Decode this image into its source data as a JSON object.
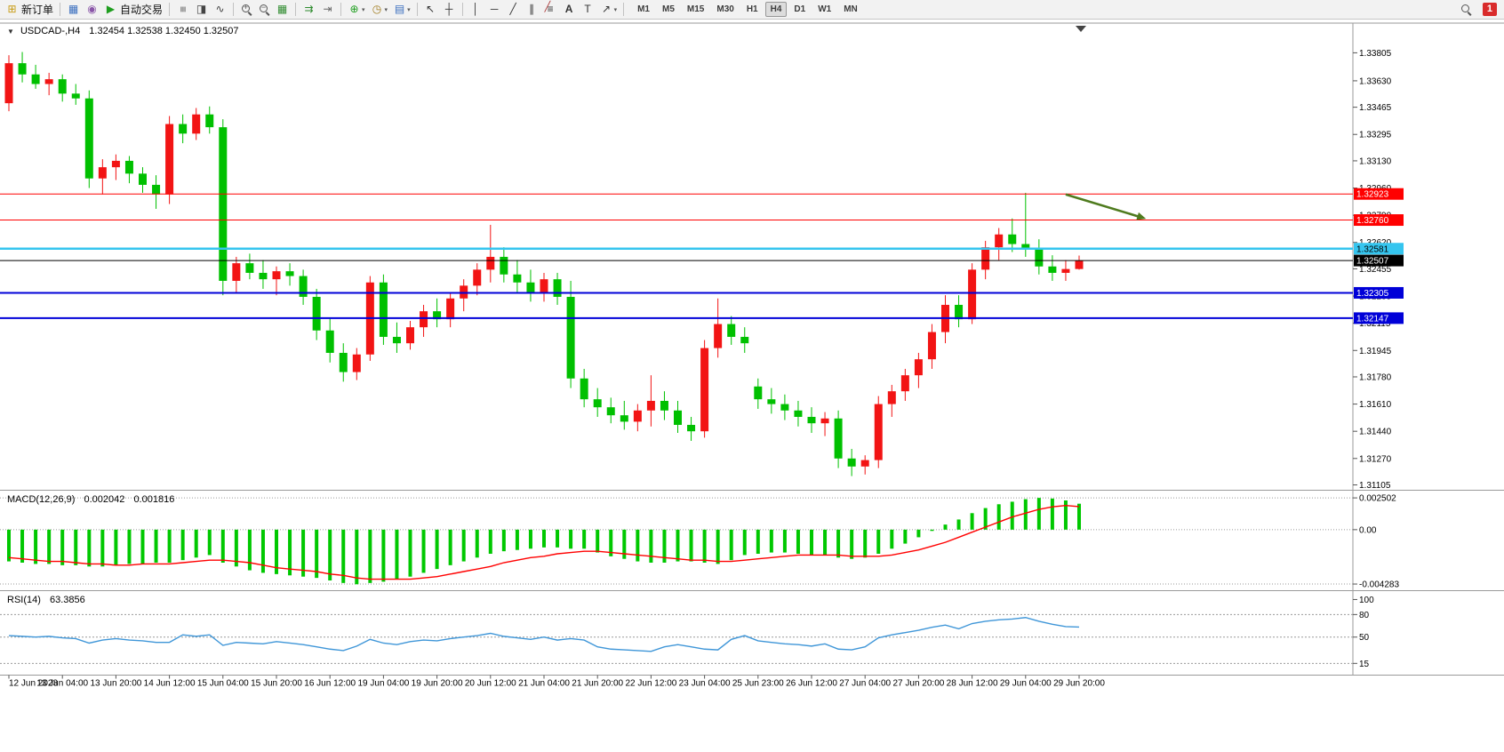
{
  "toolbar": {
    "new_order_label": "新订单",
    "auto_trading_label": "自动交易",
    "timeframes": [
      "M1",
      "M5",
      "M15",
      "M30",
      "H1",
      "H4",
      "D1",
      "W1",
      "MN"
    ],
    "active_timeframe": "H4",
    "notification_count": "1"
  },
  "icons": {
    "menu": "▼",
    "new_order": "⊞",
    "chart_window": "▦",
    "profiles": "◉",
    "auto_trading": "▶",
    "bars_mode": "≡",
    "candles_mode": "◨",
    "line_mode": "∿",
    "tile_windows": "▦",
    "auto_scroll": "⇉",
    "chart_shift": "⇥",
    "indicators_plus": "⊕",
    "periods_clock": "◷",
    "templates": "▤",
    "dropdown_caret": "▾",
    "cursor": "↖",
    "crosshair": "┼",
    "vertical_line": "│",
    "horizontal_line": "─",
    "trendline": "╱",
    "channel": "∥",
    "fibonacci_lines": "≡",
    "fibonacci_slash": "╱",
    "text_tool": "A",
    "label_tool": "T",
    "shapes_arrow": "↗",
    "zoom_in_sign": "+",
    "zoom_out_sign": "−"
  },
  "chart": {
    "symbol_period": "USDCAD-,H4",
    "ohlc": "1.32454 1.32538 1.32450 1.32507"
  },
  "indicators": {
    "macd": {
      "label": "MACD(12,26,9)",
      "value": "0.002042",
      "signal": "0.001816"
    },
    "rsi": {
      "label": "RSI(14)",
      "value": "63.3856"
    }
  },
  "chart_data": [
    {
      "type": "candlestick",
      "symbol": "USDCAD",
      "timeframe": "H4",
      "up_color": "#f21414",
      "down_color": "#00c000",
      "ylim": [
        1.3108,
        1.33985
      ],
      "y_ticks": [
        "1.33805",
        "1.33630",
        "1.33465",
        "1.33295",
        "1.33130",
        "1.32960",
        "1.32790",
        "1.32620",
        "1.32455",
        "1.32285",
        "1.32115",
        "1.31945",
        "1.31780",
        "1.31610",
        "1.31440",
        "1.31270",
        "1.31105"
      ],
      "x_labels": [
        "12 Jun 2023",
        "13 Jun 04:00",
        "13 Jun 20:00",
        "14 Jun 12:00",
        "15 Jun 04:00",
        "15 Jun 20:00",
        "16 Jun 12:00",
        "19 Jun 04:00",
        "19 Jun 20:00",
        "20 Jun 12:00",
        "21 Jun 04:00",
        "21 Jun 20:00",
        "22 Jun 12:00",
        "23 Jun 04:00",
        "25 Jun 23:00",
        "26 Jun 12:00",
        "27 Jun 04:00",
        "27 Jun 20:00",
        "28 Jun 12:00",
        "29 Jun 04:00",
        "29 Jun 20:00"
      ],
      "label_every": 4,
      "candles": [
        [
          1.3349,
          1.3379,
          1.3344,
          1.3374
        ],
        [
          1.3374,
          1.3381,
          1.3362,
          1.3367
        ],
        [
          1.3367,
          1.3373,
          1.3358,
          1.3361
        ],
        [
          1.3361,
          1.3368,
          1.3354,
          1.3364
        ],
        [
          1.3364,
          1.3367,
          1.335,
          1.3355
        ],
        [
          1.3355,
          1.3361,
          1.3348,
          1.3352
        ],
        [
          1.3352,
          1.3357,
          1.3296,
          1.3302
        ],
        [
          1.3302,
          1.3314,
          1.3292,
          1.3309
        ],
        [
          1.3309,
          1.3317,
          1.3301,
          1.3313
        ],
        [
          1.3313,
          1.3316,
          1.3299,
          1.3305
        ],
        [
          1.3305,
          1.3309,
          1.3293,
          1.3298
        ],
        [
          1.3298,
          1.3304,
          1.3283,
          1.3292
        ],
        [
          1.3292,
          1.3341,
          1.3286,
          1.3336
        ],
        [
          1.3336,
          1.3342,
          1.3324,
          1.333
        ],
        [
          1.333,
          1.3346,
          1.3326,
          1.3342
        ],
        [
          1.3342,
          1.3347,
          1.333,
          1.3334
        ],
        [
          1.3334,
          1.3339,
          1.3229,
          1.3238
        ],
        [
          1.3238,
          1.3253,
          1.3231,
          1.3249
        ],
        [
          1.3249,
          1.3255,
          1.3239,
          1.3243
        ],
        [
          1.3243,
          1.3251,
          1.3233,
          1.3239
        ],
        [
          1.3239,
          1.3247,
          1.3229,
          1.3244
        ],
        [
          1.3244,
          1.3249,
          1.3235,
          1.3241
        ],
        [
          1.3241,
          1.3245,
          1.3223,
          1.3228
        ],
        [
          1.3228,
          1.3233,
          1.3201,
          1.3207
        ],
        [
          1.3207,
          1.3215,
          1.3187,
          1.3193
        ],
        [
          1.3193,
          1.3199,
          1.3175,
          1.3181
        ],
        [
          1.3181,
          1.3196,
          1.3176,
          1.3192
        ],
        [
          1.3192,
          1.3241,
          1.3188,
          1.3237
        ],
        [
          1.3237,
          1.3242,
          1.3198,
          1.3203
        ],
        [
          1.3203,
          1.3212,
          1.3193,
          1.3199
        ],
        [
          1.3199,
          1.3213,
          1.3195,
          1.3209
        ],
        [
          1.3209,
          1.3223,
          1.3203,
          1.3219
        ],
        [
          1.3219,
          1.3227,
          1.3209,
          1.3214
        ],
        [
          1.3214,
          1.3231,
          1.3209,
          1.3227
        ],
        [
          1.3227,
          1.3239,
          1.3219,
          1.3235
        ],
        [
          1.3235,
          1.3249,
          1.3229,
          1.3245
        ],
        [
          1.3245,
          1.3273,
          1.3237,
          1.3253
        ],
        [
          1.3253,
          1.3259,
          1.3237,
          1.3242
        ],
        [
          1.3242,
          1.3251,
          1.3231,
          1.3237
        ],
        [
          1.3237,
          1.3245,
          1.3225,
          1.3231
        ],
        [
          1.3231,
          1.3243,
          1.3225,
          1.3239
        ],
        [
          1.3239,
          1.3243,
          1.3223,
          1.3228
        ],
        [
          1.3228,
          1.3238,
          1.3171,
          1.3177
        ],
        [
          1.3177,
          1.3183,
          1.3159,
          1.3164
        ],
        [
          1.3164,
          1.3171,
          1.3153,
          1.3159
        ],
        [
          1.3159,
          1.3165,
          1.3149,
          1.3154
        ],
        [
          1.3154,
          1.3163,
          1.3145,
          1.315
        ],
        [
          1.315,
          1.3161,
          1.3144,
          1.3157
        ],
        [
          1.3157,
          1.3179,
          1.3147,
          1.3163
        ],
        [
          1.3163,
          1.3169,
          1.3151,
          1.3157
        ],
        [
          1.3157,
          1.3163,
          1.3143,
          1.3148
        ],
        [
          1.3148,
          1.3153,
          1.3138,
          1.3144
        ],
        [
          1.3144,
          1.3201,
          1.314,
          1.3196
        ],
        [
          1.3196,
          1.3227,
          1.319,
          1.3211
        ],
        [
          1.3211,
          1.3216,
          1.3198,
          1.3203
        ],
        [
          1.3203,
          1.3209,
          1.3193,
          1.3199
        ],
        [
          1.3172,
          1.3177,
          1.3158,
          1.3164
        ],
        [
          1.3164,
          1.3171,
          1.3155,
          1.3161
        ],
        [
          1.3161,
          1.3167,
          1.3151,
          1.3157
        ],
        [
          1.3157,
          1.3163,
          1.3147,
          1.3153
        ],
        [
          1.3153,
          1.3159,
          1.3143,
          1.3149
        ],
        [
          1.3149,
          1.3156,
          1.3141,
          1.3152
        ],
        [
          1.3152,
          1.3157,
          1.3121,
          1.3127
        ],
        [
          1.3127,
          1.3133,
          1.3116,
          1.3122
        ],
        [
          1.3122,
          1.3129,
          1.3117,
          1.3126
        ],
        [
          1.3126,
          1.3166,
          1.3121,
          1.3161
        ],
        [
          1.3161,
          1.3173,
          1.3153,
          1.3169
        ],
        [
          1.3169,
          1.3183,
          1.3163,
          1.3179
        ],
        [
          1.3179,
          1.3193,
          1.3171,
          1.3189
        ],
        [
          1.3189,
          1.3211,
          1.3183,
          1.3206
        ],
        [
          1.3206,
          1.3229,
          1.3199,
          1.3223
        ],
        [
          1.3223,
          1.3229,
          1.3209,
          1.3214
        ],
        [
          1.3214,
          1.3249,
          1.3211,
          1.3245
        ],
        [
          1.3245,
          1.3263,
          1.3239,
          1.3259
        ],
        [
          1.3259,
          1.3271,
          1.3251,
          1.3267
        ],
        [
          1.3267,
          1.3277,
          1.3256,
          1.3261
        ],
        [
          1.3261,
          1.3293,
          1.3253,
          1.3258
        ],
        [
          1.3258,
          1.3264,
          1.3242,
          1.3247
        ],
        [
          1.3247,
          1.3254,
          1.3238,
          1.3243
        ],
        [
          1.3243,
          1.3251,
          1.3238,
          1.32454
        ],
        [
          1.32454,
          1.32538,
          1.3245,
          1.32507
        ]
      ],
      "hlines": [
        {
          "price": 1.32923,
          "label": "1.32923",
          "color": "#ff0000",
          "label_bg": "#ff0000",
          "label_color": "#ffffff",
          "width": 1
        },
        {
          "price": 1.3276,
          "label": "1.32760",
          "color": "#ff0000",
          "label_bg": "#ff0000",
          "label_color": "#ffffff",
          "width": 1
        },
        {
          "price": 1.32581,
          "label": "1.32581",
          "color": "#35c5ef",
          "label_bg": "#35c5ef",
          "label_color": "#000000",
          "width": 2.5
        },
        {
          "price": 1.32507,
          "label": "1.32507",
          "color": "#000000",
          "label_bg": "#000000",
          "label_color": "#ffffff",
          "width": 1
        },
        {
          "price": 1.32305,
          "label": "1.32305",
          "color": "#0000d8",
          "label_bg": "#0000d8",
          "label_color": "#ffffff",
          "width": 2
        },
        {
          "price": 1.32147,
          "label": "1.32147",
          "color": "#0000d8",
          "label_bg": "#0000d8",
          "label_color": "#ffffff",
          "width": 2
        }
      ],
      "arrow": {
        "from_candle": 79,
        "from_price": 1.3292,
        "to_candle": 85,
        "to_price": 1.32768,
        "color": "#4f7b1e"
      }
    },
    {
      "type": "bar",
      "name": "MACD(12,26,9)",
      "bar_color": "#00c800",
      "signal_color": "#ff0000",
      "ylim": [
        -0.0047,
        0.003
      ],
      "ticks": [
        {
          "v": 0.002502,
          "label": "0.002502"
        },
        {
          "v": 0,
          "label": "0.00"
        },
        {
          "v": -0.004283,
          "label": "-0.004283"
        }
      ],
      "values": [
        -0.0025,
        -0.0026,
        -0.0027,
        -0.0027,
        -0.0028,
        -0.0028,
        -0.0029,
        -0.0029,
        -0.0028,
        -0.0027,
        -0.0027,
        -0.0026,
        -0.0026,
        -0.0024,
        -0.0022,
        -0.002,
        -0.0026,
        -0.0029,
        -0.0032,
        -0.0034,
        -0.0035,
        -0.0036,
        -0.0037,
        -0.0038,
        -0.004,
        -0.0042,
        -0.0043,
        -0.0042,
        -0.0041,
        -0.0039,
        -0.0037,
        -0.0034,
        -0.0031,
        -0.0028,
        -0.0025,
        -0.0022,
        -0.0019,
        -0.0017,
        -0.0016,
        -0.0015,
        -0.0014,
        -0.0014,
        -0.0015,
        -0.0015,
        -0.0018,
        -0.0021,
        -0.0023,
        -0.0025,
        -0.0026,
        -0.0026,
        -0.0025,
        -0.0025,
        -0.0026,
        -0.0027,
        -0.0024,
        -0.002,
        -0.0019,
        -0.0018,
        -0.0018,
        -0.0019,
        -0.002,
        -0.002,
        -0.0022,
        -0.0023,
        -0.0022,
        -0.0019,
        -0.0015,
        -0.0011,
        -0.0006,
        -0.0001,
        0.0004,
        0.0008,
        0.0013,
        0.0017,
        0.002,
        0.0022,
        0.0024,
        0.0025,
        0.00245,
        0.0023,
        0.002042
      ],
      "signal": [
        -0.0022,
        -0.0023,
        -0.0024,
        -0.0025,
        -0.0025,
        -0.0026,
        -0.0027,
        -0.0027,
        -0.0028,
        -0.0028,
        -0.0027,
        -0.0027,
        -0.0027,
        -0.0026,
        -0.0025,
        -0.0024,
        -0.0024,
        -0.0025,
        -0.0026,
        -0.0028,
        -0.003,
        -0.0031,
        -0.0032,
        -0.0033,
        -0.0035,
        -0.0036,
        -0.0038,
        -0.0039,
        -0.0039,
        -0.0039,
        -0.0039,
        -0.0038,
        -0.0037,
        -0.0035,
        -0.0033,
        -0.0031,
        -0.0029,
        -0.0026,
        -0.0024,
        -0.0022,
        -0.0021,
        -0.0019,
        -0.0018,
        -0.0017,
        -0.0017,
        -0.0018,
        -0.0019,
        -0.002,
        -0.0021,
        -0.0022,
        -0.0023,
        -0.0024,
        -0.0024,
        -0.0025,
        -0.0025,
        -0.0024,
        -0.0023,
        -0.0022,
        -0.0021,
        -0.002,
        -0.002,
        -0.002,
        -0.002,
        -0.0021,
        -0.0021,
        -0.0021,
        -0.002,
        -0.0018,
        -0.0016,
        -0.0013,
        -0.001,
        -0.0006,
        -0.0002,
        0.0002,
        0.0006,
        0.001,
        0.0013,
        0.0016,
        0.0018,
        0.0019,
        0.001816
      ]
    },
    {
      "type": "line",
      "name": "RSI(14)",
      "line_color": "#3f96d8",
      "ylim": [
        0,
        110
      ],
      "levels": [
        80,
        50,
        15
      ],
      "ticks": [
        {
          "v": 100,
          "label": "100"
        },
        {
          "v": 80,
          "label": "80"
        },
        {
          "v": 50,
          "label": "50"
        },
        {
          "v": 15,
          "label": "15"
        }
      ],
      "values": [
        52,
        51,
        50,
        51,
        49,
        48,
        42,
        46,
        48,
        46,
        45,
        43,
        43,
        53,
        51,
        53,
        39,
        43,
        42,
        41,
        44,
        42,
        40,
        37,
        34,
        32,
        38,
        47,
        42,
        40,
        44,
        46,
        45,
        48,
        50,
        52,
        55,
        51,
        49,
        47,
        50,
        46,
        48,
        46,
        37,
        34,
        33,
        32,
        31,
        37,
        40,
        37,
        34,
        33,
        47,
        52,
        45,
        43,
        41,
        40,
        38,
        41,
        34,
        33,
        37,
        49,
        53,
        56,
        59,
        63,
        66,
        61,
        68,
        71,
        73,
        74,
        76,
        71,
        67,
        64,
        63.3856
      ]
    }
  ]
}
